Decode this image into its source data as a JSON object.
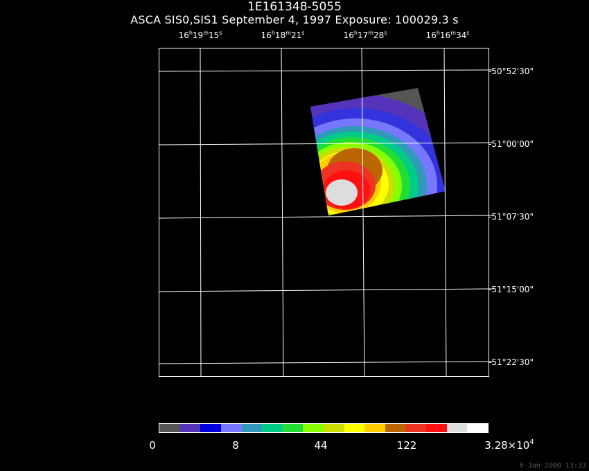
{
  "title": "1E161348-5055",
  "subtitle": "ASCA SIS0,SIS1 September 4, 1997 Exposure: 100029.3 s",
  "ra_ticks": [
    {
      "h": "16",
      "m": "19",
      "s": "15"
    },
    {
      "h": "16",
      "m": "18",
      "s": "21"
    },
    {
      "h": "16",
      "m": "17",
      "s": "28"
    },
    {
      "h": "16",
      "m": "16",
      "s": "34"
    }
  ],
  "dec_ticks": [
    "-50°52'30\"",
    "-51°00'00\"",
    "-51°07'30\"",
    "-51°15'00\"",
    "-51°22'30\""
  ],
  "colorbar": {
    "colors": [
      "#555555",
      "#5533bb",
      "#0000dd",
      "#7777ff",
      "#3399bb",
      "#00cc88",
      "#22dd33",
      "#88ff00",
      "#ccdd00",
      "#ffff00",
      "#ffcc00",
      "#bb6600",
      "#ee3322",
      "#ff1111",
      "#dddddd",
      "#ffffff"
    ],
    "labels": {
      "l0": "0",
      "l1": "8",
      "l2": "44",
      "l3": "122",
      "l4_mantissa": "3.28×10",
      "l4_exp": "4"
    }
  },
  "date_stamp": "6-Jan-2000 13:33"
}
